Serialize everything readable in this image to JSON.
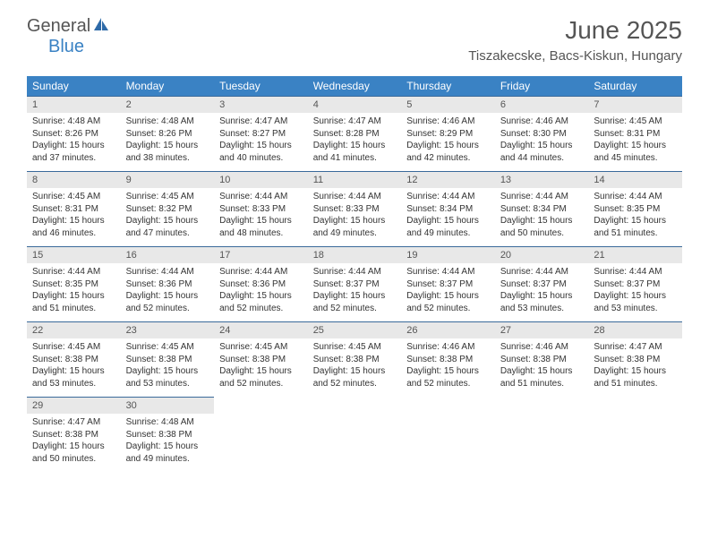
{
  "brand": {
    "part1": "General",
    "part2": "Blue"
  },
  "title": "June 2025",
  "location": "Tiszakecske, Bacs-Kiskun, Hungary",
  "colors": {
    "header_bg": "#3a82c4",
    "header_text": "#ffffff",
    "daynum_bg": "#e8e8e8",
    "body_text": "#333333",
    "rule": "#3a6a9a"
  },
  "dow": [
    "Sunday",
    "Monday",
    "Tuesday",
    "Wednesday",
    "Thursday",
    "Friday",
    "Saturday"
  ],
  "days": [
    {
      "n": 1,
      "sr": "4:48 AM",
      "ss": "8:26 PM",
      "dl": "15 hours and 37 minutes."
    },
    {
      "n": 2,
      "sr": "4:48 AM",
      "ss": "8:26 PM",
      "dl": "15 hours and 38 minutes."
    },
    {
      "n": 3,
      "sr": "4:47 AM",
      "ss": "8:27 PM",
      "dl": "15 hours and 40 minutes."
    },
    {
      "n": 4,
      "sr": "4:47 AM",
      "ss": "8:28 PM",
      "dl": "15 hours and 41 minutes."
    },
    {
      "n": 5,
      "sr": "4:46 AM",
      "ss": "8:29 PM",
      "dl": "15 hours and 42 minutes."
    },
    {
      "n": 6,
      "sr": "4:46 AM",
      "ss": "8:30 PM",
      "dl": "15 hours and 44 minutes."
    },
    {
      "n": 7,
      "sr": "4:45 AM",
      "ss": "8:31 PM",
      "dl": "15 hours and 45 minutes."
    },
    {
      "n": 8,
      "sr": "4:45 AM",
      "ss": "8:31 PM",
      "dl": "15 hours and 46 minutes."
    },
    {
      "n": 9,
      "sr": "4:45 AM",
      "ss": "8:32 PM",
      "dl": "15 hours and 47 minutes."
    },
    {
      "n": 10,
      "sr": "4:44 AM",
      "ss": "8:33 PM",
      "dl": "15 hours and 48 minutes."
    },
    {
      "n": 11,
      "sr": "4:44 AM",
      "ss": "8:33 PM",
      "dl": "15 hours and 49 minutes."
    },
    {
      "n": 12,
      "sr": "4:44 AM",
      "ss": "8:34 PM",
      "dl": "15 hours and 49 minutes."
    },
    {
      "n": 13,
      "sr": "4:44 AM",
      "ss": "8:34 PM",
      "dl": "15 hours and 50 minutes."
    },
    {
      "n": 14,
      "sr": "4:44 AM",
      "ss": "8:35 PM",
      "dl": "15 hours and 51 minutes."
    },
    {
      "n": 15,
      "sr": "4:44 AM",
      "ss": "8:35 PM",
      "dl": "15 hours and 51 minutes."
    },
    {
      "n": 16,
      "sr": "4:44 AM",
      "ss": "8:36 PM",
      "dl": "15 hours and 52 minutes."
    },
    {
      "n": 17,
      "sr": "4:44 AM",
      "ss": "8:36 PM",
      "dl": "15 hours and 52 minutes."
    },
    {
      "n": 18,
      "sr": "4:44 AM",
      "ss": "8:37 PM",
      "dl": "15 hours and 52 minutes."
    },
    {
      "n": 19,
      "sr": "4:44 AM",
      "ss": "8:37 PM",
      "dl": "15 hours and 52 minutes."
    },
    {
      "n": 20,
      "sr": "4:44 AM",
      "ss": "8:37 PM",
      "dl": "15 hours and 53 minutes."
    },
    {
      "n": 21,
      "sr": "4:44 AM",
      "ss": "8:37 PM",
      "dl": "15 hours and 53 minutes."
    },
    {
      "n": 22,
      "sr": "4:45 AM",
      "ss": "8:38 PM",
      "dl": "15 hours and 53 minutes."
    },
    {
      "n": 23,
      "sr": "4:45 AM",
      "ss": "8:38 PM",
      "dl": "15 hours and 53 minutes."
    },
    {
      "n": 24,
      "sr": "4:45 AM",
      "ss": "8:38 PM",
      "dl": "15 hours and 52 minutes."
    },
    {
      "n": 25,
      "sr": "4:45 AM",
      "ss": "8:38 PM",
      "dl": "15 hours and 52 minutes."
    },
    {
      "n": 26,
      "sr": "4:46 AM",
      "ss": "8:38 PM",
      "dl": "15 hours and 52 minutes."
    },
    {
      "n": 27,
      "sr": "4:46 AM",
      "ss": "8:38 PM",
      "dl": "15 hours and 51 minutes."
    },
    {
      "n": 28,
      "sr": "4:47 AM",
      "ss": "8:38 PM",
      "dl": "15 hours and 51 minutes."
    },
    {
      "n": 29,
      "sr": "4:47 AM",
      "ss": "8:38 PM",
      "dl": "15 hours and 50 minutes."
    },
    {
      "n": 30,
      "sr": "4:48 AM",
      "ss": "8:38 PM",
      "dl": "15 hours and 49 minutes."
    }
  ],
  "labels": {
    "sunrise": "Sunrise:",
    "sunset": "Sunset:",
    "daylight": "Daylight:"
  }
}
